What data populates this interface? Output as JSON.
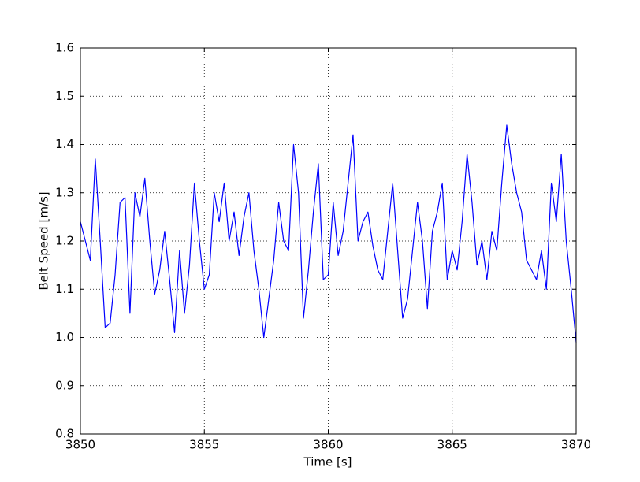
{
  "chart_data": {
    "type": "line",
    "xlabel": "Time [s]",
    "ylabel": "Belt Speed [m/s]",
    "xlim": [
      3850,
      3870
    ],
    "ylim": [
      0.8,
      1.6
    ],
    "xticks": [
      3850,
      3855,
      3860,
      3865,
      3870
    ],
    "yticks": [
      0.8,
      0.9,
      {
        "value": 1,
        "label": "1.0"
      },
      1.1,
      1.2,
      1.3,
      1.4,
      1.5,
      1.6
    ],
    "grid": true,
    "series": [
      {
        "color": "#0000ff",
        "x": [
          3850.0,
          3850.2,
          3850.4,
          3850.6,
          3850.8,
          3851.0,
          3851.2,
          3851.4,
          3851.6,
          3851.8,
          3852.0,
          3852.2,
          3852.4,
          3852.6,
          3852.8,
          3853.0,
          3853.2,
          3853.4,
          3853.6,
          3853.8,
          3854.0,
          3854.2,
          3854.4,
          3854.6,
          3854.8,
          3855.0,
          3855.2,
          3855.4,
          3855.6,
          3855.8,
          3856.0,
          3856.2,
          3856.4,
          3856.6,
          3856.8,
          3857.0,
          3857.2,
          3857.4,
          3857.6,
          3857.8,
          3858.0,
          3858.2,
          3858.4,
          3858.6,
          3858.8,
          3859.0,
          3859.2,
          3859.4,
          3859.6,
          3859.8,
          3860.0,
          3860.2,
          3860.4,
          3860.6,
          3860.8,
          3861.0,
          3861.2,
          3861.4,
          3861.6,
          3861.8,
          3862.0,
          3862.2,
          3862.4,
          3862.6,
          3862.8,
          3863.0,
          3863.2,
          3863.4,
          3863.6,
          3863.8,
          3864.0,
          3864.2,
          3864.4,
          3864.6,
          3864.8,
          3865.0,
          3865.2,
          3865.4,
          3865.6,
          3865.8,
          3866.0,
          3866.2,
          3866.4,
          3866.6,
          3866.8,
          3867.0,
          3867.2,
          3867.4,
          3867.6,
          3867.8,
          3868.0,
          3868.2,
          3868.4,
          3868.6,
          3868.8,
          3869.0,
          3869.2,
          3869.4,
          3869.6,
          3869.8,
          3870.0
        ],
        "values": [
          1.24,
          1.2,
          1.16,
          1.37,
          1.2,
          1.02,
          1.03,
          1.13,
          1.28,
          1.29,
          1.05,
          1.3,
          1.25,
          1.33,
          1.2,
          1.09,
          1.14,
          1.22,
          1.12,
          1.01,
          1.18,
          1.05,
          1.15,
          1.32,
          1.2,
          1.1,
          1.13,
          1.3,
          1.24,
          1.32,
          1.2,
          1.26,
          1.17,
          1.25,
          1.3,
          1.18,
          1.1,
          1.0,
          1.08,
          1.16,
          1.28,
          1.2,
          1.18,
          1.4,
          1.3,
          1.04,
          1.14,
          1.26,
          1.36,
          1.12,
          1.13,
          1.28,
          1.17,
          1.22,
          1.32,
          1.42,
          1.2,
          1.24,
          1.26,
          1.19,
          1.14,
          1.12,
          1.22,
          1.32,
          1.18,
          1.04,
          1.08,
          1.18,
          1.28,
          1.2,
          1.06,
          1.22,
          1.26,
          1.32,
          1.12,
          1.18,
          1.14,
          1.24,
          1.38,
          1.28,
          1.15,
          1.2,
          1.12,
          1.22,
          1.18,
          1.32,
          1.44,
          1.36,
          1.3,
          1.26,
          1.16,
          1.14,
          1.12,
          1.18,
          1.1,
          1.32,
          1.24,
          1.38,
          1.2,
          1.1,
          0.99
        ]
      }
    ]
  }
}
